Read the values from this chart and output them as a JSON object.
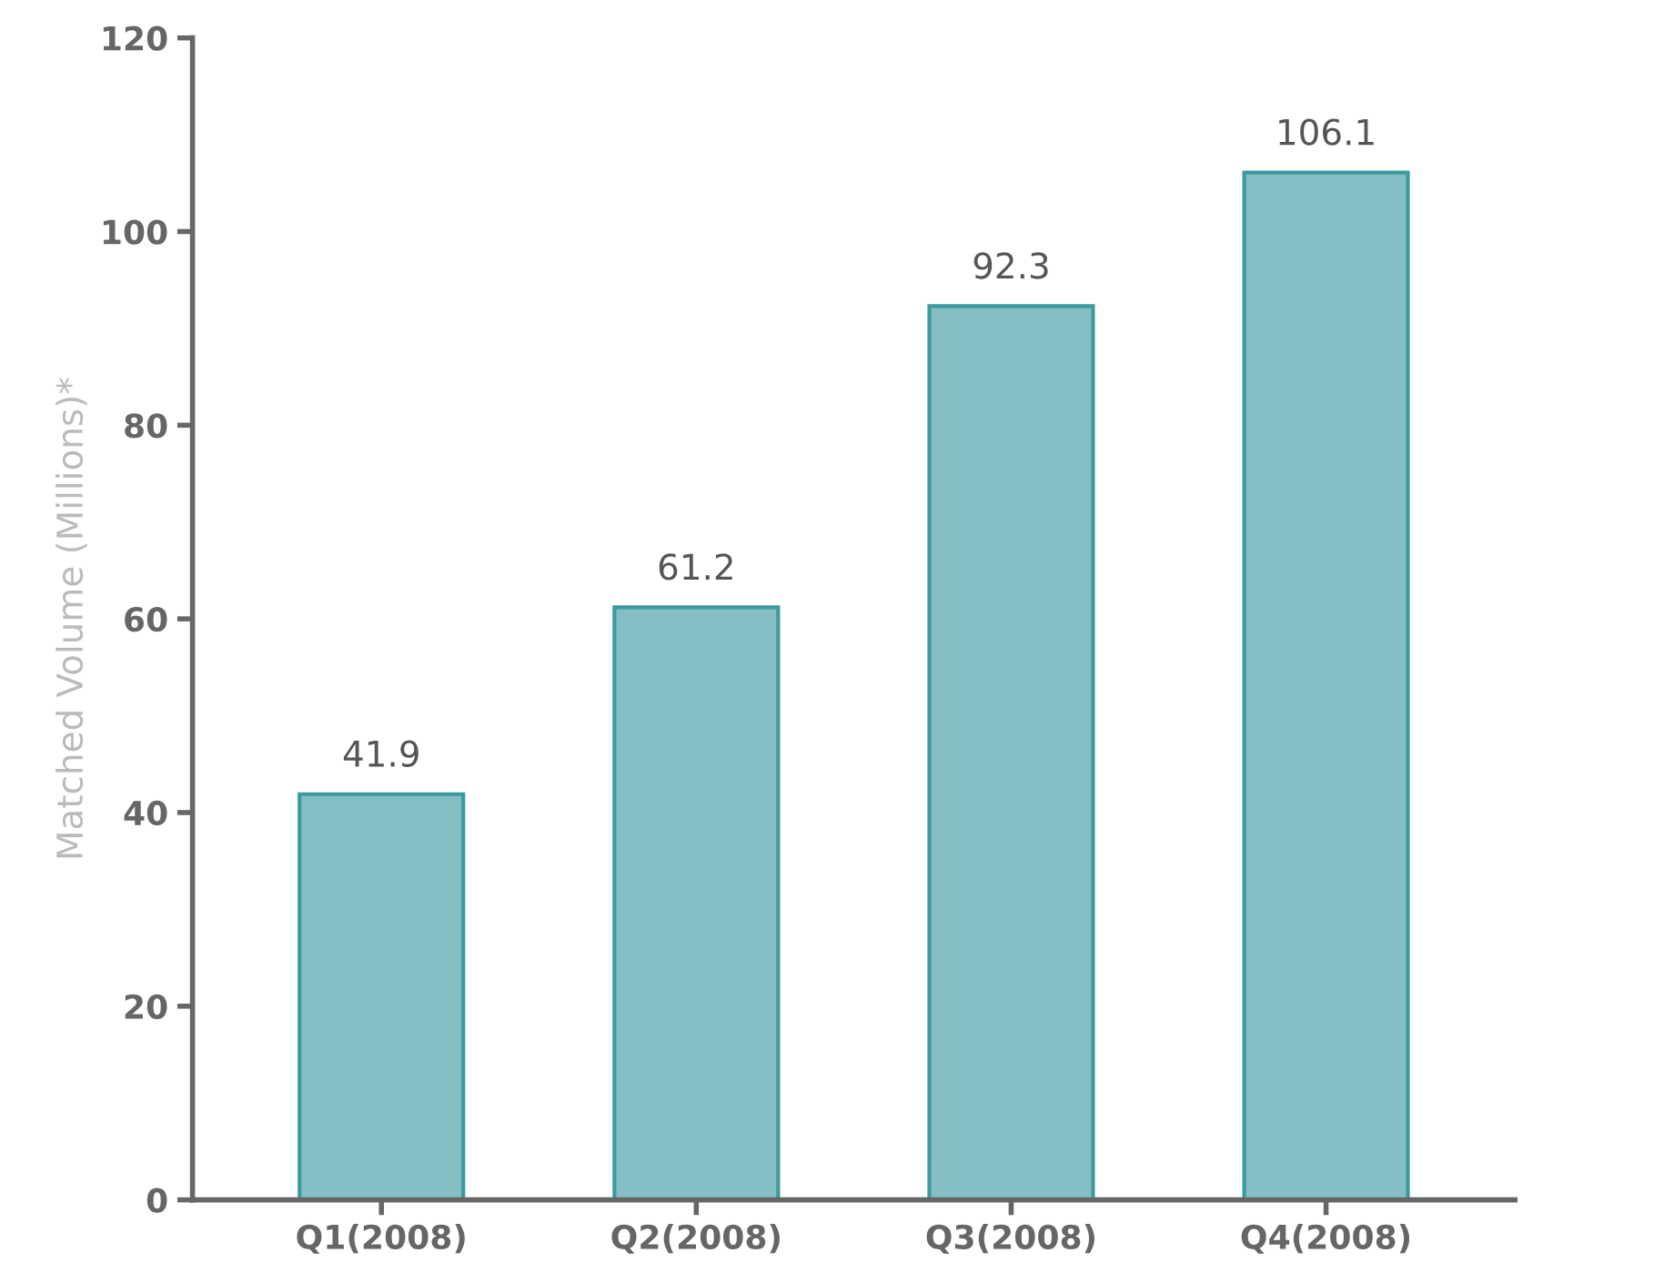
{
  "chart_data": {
    "type": "bar",
    "ylabel": "Matched Volume (Millions)*",
    "categories": [
      "Q1(2008)",
      "Q2(2008)",
      "Q3(2008)",
      "Q4(2008)"
    ],
    "values": [
      41.9,
      61.2,
      92.3,
      106.1
    ],
    "color": "#85bfc3",
    "ylim": [
      0,
      120
    ],
    "yticks": [
      0,
      20,
      40,
      60,
      80,
      100,
      120
    ],
    "data_labels": true,
    "grid": false
  }
}
